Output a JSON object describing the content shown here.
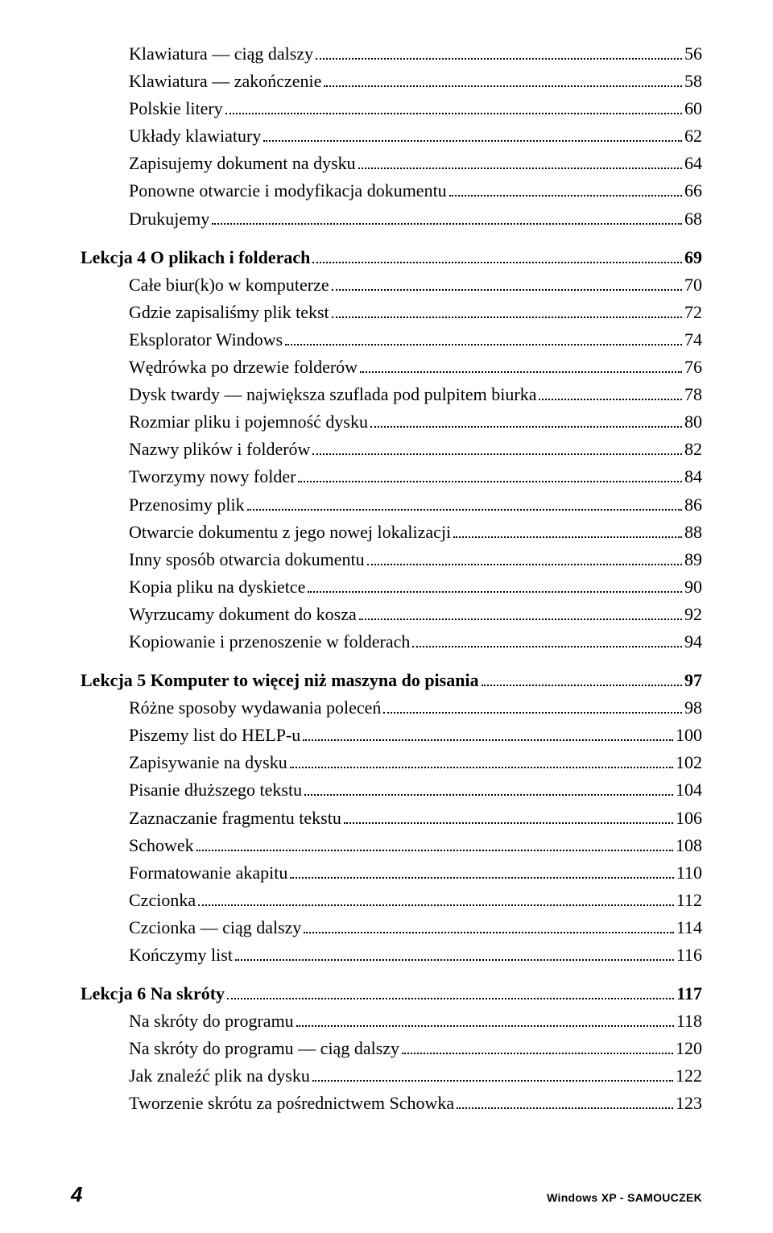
{
  "colors": {
    "background": "#ffffff",
    "text": "#000000",
    "leader": "#000000"
  },
  "typography": {
    "body_font": "Times New Roman",
    "body_size_pt": 16,
    "footer_font": "Arial",
    "footer_pageno_size_pt": 20,
    "footer_title_size_pt": 11
  },
  "footer": {
    "page_number": "4",
    "book_title": "Windows XP - SAMOUCZEK"
  },
  "toc": [
    {
      "heading": null,
      "entries": [
        {
          "title": "Klawiatura — ciąg dalszy",
          "page": "56"
        },
        {
          "title": "Klawiatura — zakończenie",
          "page": "58"
        },
        {
          "title": "Polskie litery",
          "page": "60"
        },
        {
          "title": "Układy klawiatury",
          "page": "62"
        },
        {
          "title": "Zapisujemy dokument na dysku",
          "page": "64"
        },
        {
          "title": "Ponowne otwarcie i modyfikacja dokumentu",
          "page": "66"
        },
        {
          "title": "Drukujemy",
          "page": "68"
        }
      ]
    },
    {
      "heading": {
        "title": "Lekcja 4 O plikach i folderach",
        "page": "69"
      },
      "entries": [
        {
          "title": "Całe biur(k)o w komputerze",
          "page": "70"
        },
        {
          "title": "Gdzie zapisaliśmy plik tekst",
          "page": "72"
        },
        {
          "title": "Eksplorator Windows",
          "page": "74"
        },
        {
          "title": "Wędrówka po drzewie folderów",
          "page": "76"
        },
        {
          "title": "Dysk twardy — największa szuflada pod pulpitem biurka",
          "page": "78"
        },
        {
          "title": "Rozmiar pliku i pojemność dysku",
          "page": "80"
        },
        {
          "title": "Nazwy plików i folderów",
          "page": "82"
        },
        {
          "title": "Tworzymy nowy folder",
          "page": "84"
        },
        {
          "title": "Przenosimy plik",
          "page": "86"
        },
        {
          "title": "Otwarcie dokumentu z jego nowej lokalizacji",
          "page": "88"
        },
        {
          "title": "Inny sposób otwarcia dokumentu",
          "page": "89"
        },
        {
          "title": "Kopia pliku na dyskietce",
          "page": "90"
        },
        {
          "title": "Wyrzucamy dokument do kosza",
          "page": "92"
        },
        {
          "title": "Kopiowanie i przenoszenie w folderach",
          "page": "94"
        }
      ]
    },
    {
      "heading": {
        "title": "Lekcja 5 Komputer to więcej niż maszyna do pisania",
        "page": "97"
      },
      "entries": [
        {
          "title": "Różne sposoby wydawania poleceń",
          "page": "98"
        },
        {
          "title": "Piszemy list do HELP-u",
          "page": "100"
        },
        {
          "title": "Zapisywanie na dysku",
          "page": "102"
        },
        {
          "title": "Pisanie dłuższego tekstu",
          "page": "104"
        },
        {
          "title": "Zaznaczanie fragmentu tekstu",
          "page": "106"
        },
        {
          "title": "Schowek",
          "page": "108"
        },
        {
          "title": "Formatowanie akapitu",
          "page": "110"
        },
        {
          "title": "Czcionka",
          "page": "112"
        },
        {
          "title": "Czcionka — ciąg dalszy",
          "page": "114"
        },
        {
          "title": "Kończymy list",
          "page": "116"
        }
      ]
    },
    {
      "heading": {
        "title": "Lekcja 6 Na skróty",
        "page": "117"
      },
      "entries": [
        {
          "title": "Na skróty do programu",
          "page": "118"
        },
        {
          "title": "Na skróty do programu — ciąg dalszy",
          "page": "120"
        },
        {
          "title": "Jak znaleźć plik na dysku",
          "page": "122"
        },
        {
          "title": "Tworzenie skrótu za pośrednictwem Schowka",
          "page": "123"
        }
      ]
    }
  ]
}
